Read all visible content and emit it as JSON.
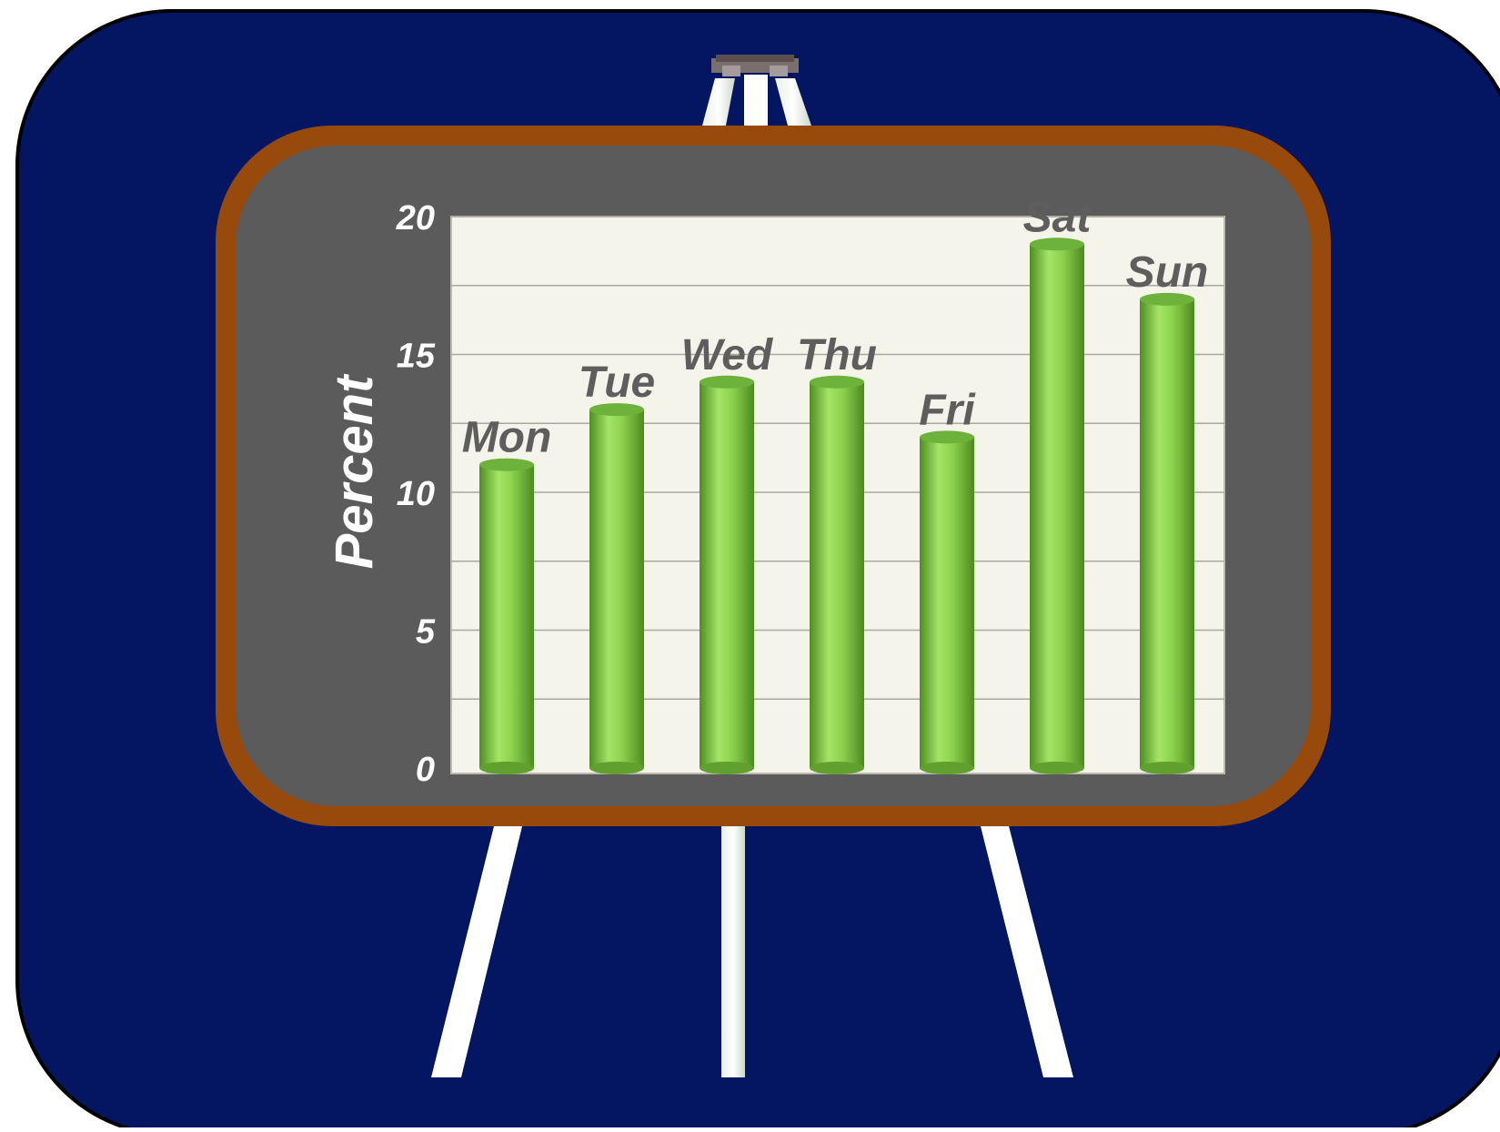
{
  "colors": {
    "panel": "#041562",
    "frame": "#974A0C",
    "board": "#5B5B5B",
    "plot_area": "#F5F4EA",
    "grid": "#AAA89C",
    "bar_light": "#9FE160",
    "bar_dark": "#5A9A2A",
    "label_text": "#5E5E5E",
    "axis_text": "#FFFFFF",
    "easel": "#FFFFFF"
  },
  "chart_data": {
    "type": "bar",
    "categories": [
      "Mon",
      "Tue",
      "Wed",
      "Thu",
      "Fri",
      "Sat",
      "Sun"
    ],
    "values": [
      11,
      13,
      14,
      14,
      12,
      19,
      17
    ],
    "ylabel": "Percent",
    "ylim": [
      0,
      20
    ],
    "yticks": [
      0,
      5,
      10,
      15,
      20
    ],
    "grid": true,
    "bar_style": "cylinder",
    "category_labels_position": "above bars"
  }
}
